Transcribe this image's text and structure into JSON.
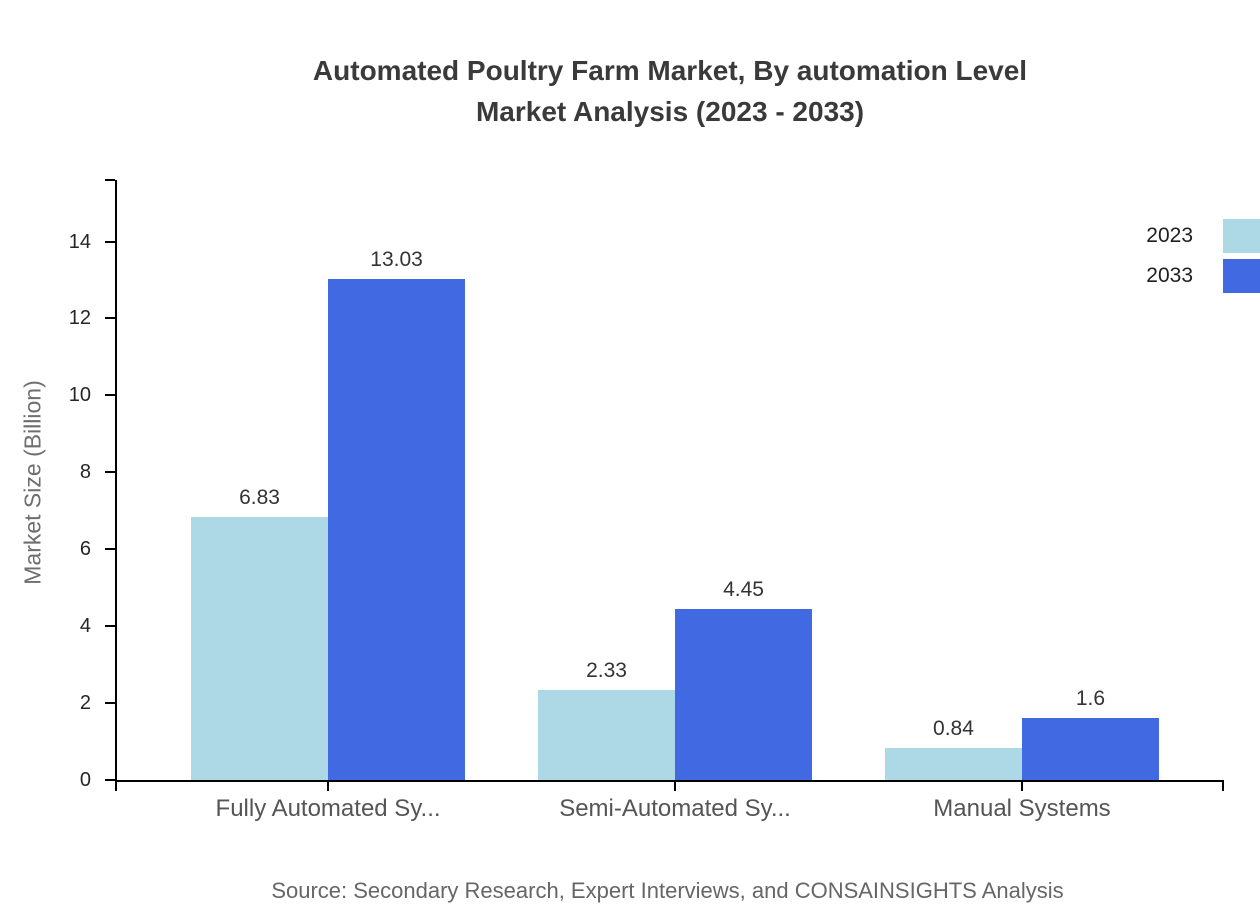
{
  "title": {
    "line1": "Automated Poultry Farm Market, By automation Level",
    "line2": "Market Analysis (2023 - 2033)"
  },
  "source": "Source: Secondary Research, Expert Interviews, and CONSAINSIGHTS Analysis",
  "colors": {
    "series_2023": "#ADD8E6",
    "series_2033": "#4169E1",
    "axis": "#000000",
    "title_text": "#3a3a3a",
    "muted_text": "#666666"
  },
  "chart_data": {
    "type": "bar",
    "title": "Automated Poultry Farm Market, By automation Level Market Analysis (2023 - 2033)",
    "categories": [
      "Fully Automated Sy...",
      "Semi-Automated Sy...",
      "Manual Systems"
    ],
    "series": [
      {
        "name": "2023",
        "color": "#ADD8E6",
        "values": [
          6.83,
          2.33,
          0.84
        ]
      },
      {
        "name": "2033",
        "color": "#4169E1",
        "values": [
          13.03,
          4.45,
          1.6
        ]
      }
    ],
    "value_labels": [
      "6.83",
      "13.03",
      "2.33",
      "4.45",
      "0.84",
      "1.6"
    ],
    "xlabel": "",
    "ylabel": "Market Size (Billion)",
    "ylim": [
      0,
      15.6
    ],
    "yticks": [
      0,
      2,
      4,
      6,
      8,
      10,
      12,
      14
    ],
    "grid": "off",
    "legend_position": "top-right"
  }
}
